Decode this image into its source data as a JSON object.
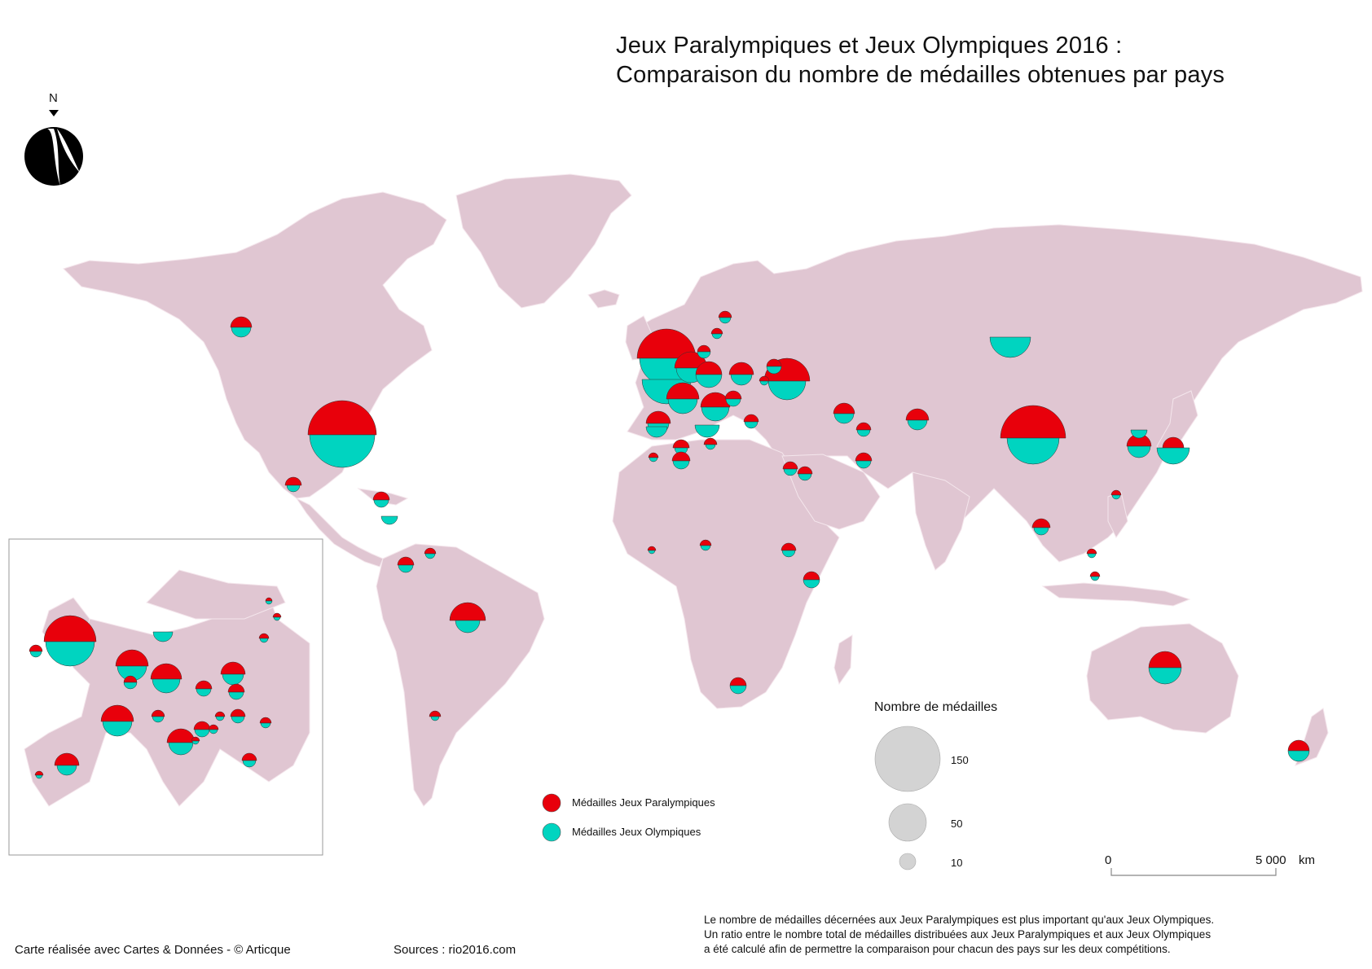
{
  "title": {
    "line1": "Jeux Paralympiques et Jeux Olympiques 2016 :",
    "line2": "Comparaison du nombre de médailles obtenues par pays"
  },
  "north_arrow": {
    "label": "N",
    "icon": "north-arrow-icon"
  },
  "colors": {
    "land": "#e0c6d2",
    "border": "#f4e6ec",
    "paralympic": "#e8000b",
    "olympic": "#00d4c0",
    "size_legend": "#d3d3d3"
  },
  "legend": {
    "paralympic_label": "Médailles Jeux Paralympiques",
    "olympic_label": "Médailles Jeux Olympiques"
  },
  "size_legend": {
    "title": "Nombre de médailles",
    "values": [
      "150",
      "50",
      "10"
    ]
  },
  "scale_bar": {
    "start": "0",
    "end": "5 000",
    "unit": "km"
  },
  "note": {
    "line1": "Le nombre de médailles décernées aux Jeux Paralympiques est plus important qu'aux Jeux Olympiques.",
    "line2": "Un ratio entre le nombre total de médailles distribuées aux Jeux Paralympiques et aux Jeux Olympiques",
    "line3": "a été calculé afin de permettre la comparaison pour chacun des pays sur les deux compétitions."
  },
  "footer": {
    "credit": "Carte réalisée avec Cartes & Données - © Articque",
    "sources": "Sources : rio2016.com"
  }
}
